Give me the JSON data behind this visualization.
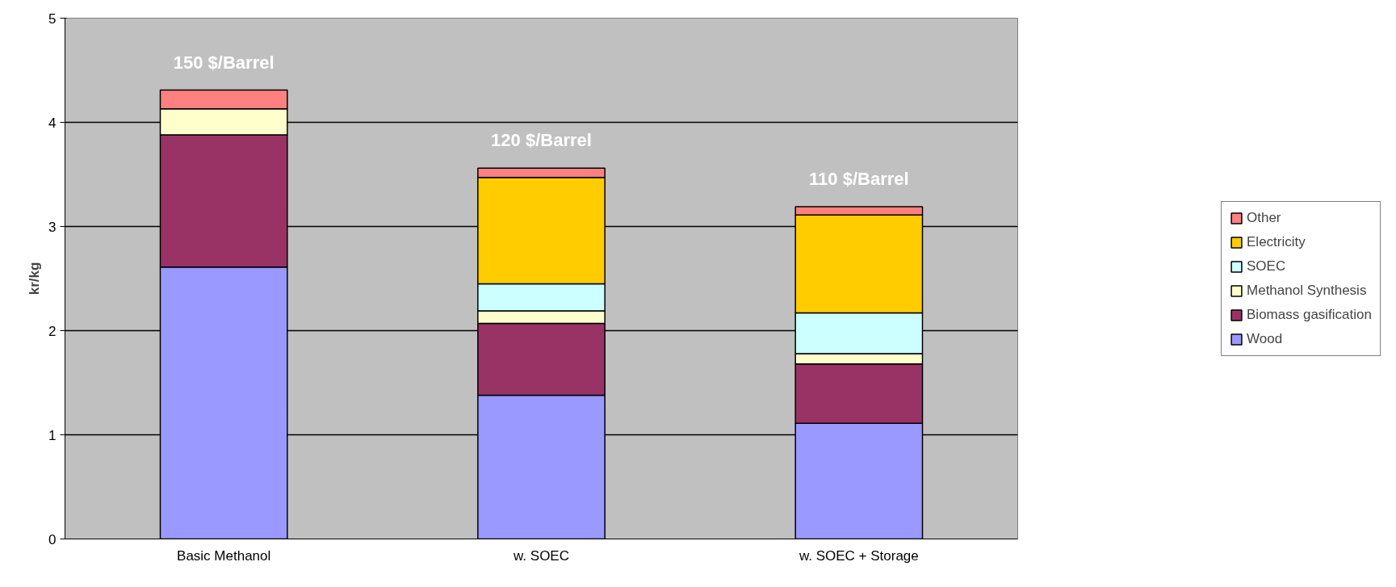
{
  "chart_data": {
    "type": "bar",
    "stacked": true,
    "ylabel": "kr/kg",
    "categories": [
      "Basic Methanol",
      "w. SOEC",
      "w. SOEC + Storage"
    ],
    "series": [
      {
        "name": "Wood",
        "color": "#9999ff",
        "values": [
          2.61,
          1.38,
          1.11
        ]
      },
      {
        "name": "Biomass gasification",
        "color": "#993366",
        "values": [
          1.27,
          0.69,
          0.57
        ]
      },
      {
        "name": "Methanol Synthesis",
        "color": "#ffffcc",
        "values": [
          0.25,
          0.12,
          0.1
        ]
      },
      {
        "name": "SOEC",
        "color": "#ccffff",
        "values": [
          null,
          0.26,
          0.39
        ]
      },
      {
        "name": "Electricity",
        "color": "#ffcc00",
        "values": [
          null,
          1.02,
          0.94
        ]
      },
      {
        "name": "Other",
        "color": "#ff8080",
        "values": [
          0.18,
          0.09,
          0.08
        ]
      }
    ],
    "ylim": [
      0,
      5
    ],
    "yticks": [
      0,
      1,
      2,
      3,
      4,
      5
    ],
    "grid": "y",
    "legend": "right",
    "annotations": [
      "150 $/Barrel",
      "120 $/Barrel",
      "110 $/Barrel"
    ]
  }
}
